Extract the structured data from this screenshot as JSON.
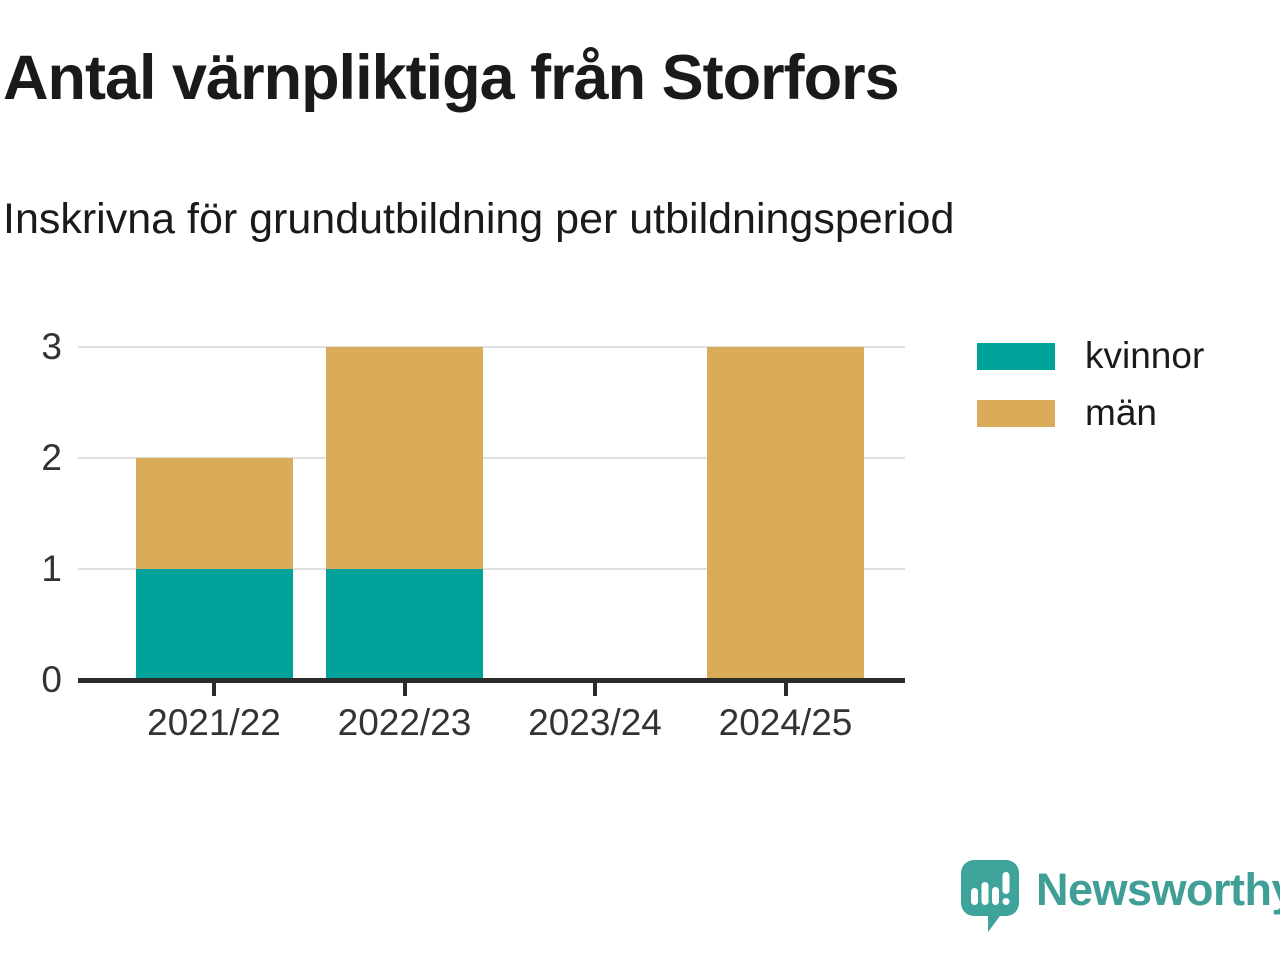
{
  "chart_data": {
    "type": "bar",
    "stacked": true,
    "title": "Antal värnpliktiga från Storfors",
    "subtitle": "Inskrivna för grundutbildning per utbildningsperiod",
    "categories": [
      "2021/22",
      "2022/23",
      "2023/24",
      "2024/25"
    ],
    "series": [
      {
        "name": "kvinnor",
        "color": "#00A299",
        "values": [
          1,
          1,
          0,
          0
        ]
      },
      {
        "name": "män",
        "color": "#DAAB58",
        "values": [
          1,
          2,
          0,
          3
        ]
      }
    ],
    "xlabel": "",
    "ylabel": "",
    "yticks": [
      0,
      1,
      2,
      3
    ],
    "ylim": [
      0,
      3
    ],
    "grid": "horizontal",
    "legend_position": "right-top"
  },
  "colors": {
    "axis": "#2b2b2b",
    "gridline": "#e0e0e0",
    "tick_text": "#333333",
    "logo": "#3F9E96"
  },
  "branding": {
    "logo_text": "Newsworthy"
  }
}
